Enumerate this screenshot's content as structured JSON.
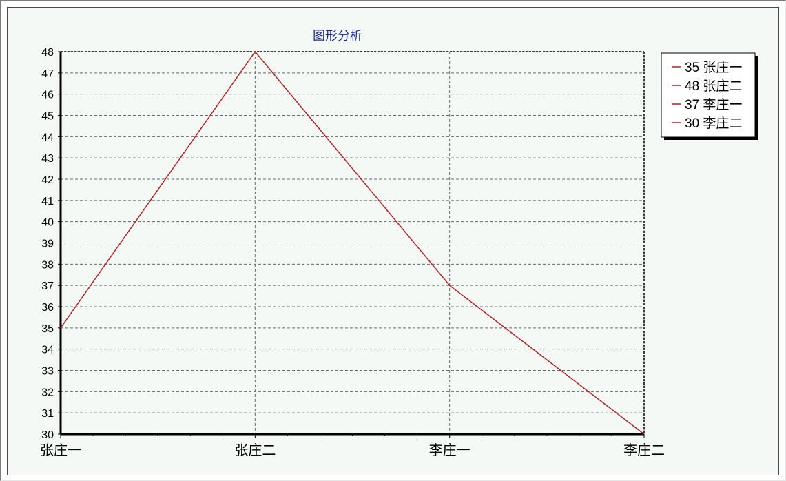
{
  "chart_data": {
    "type": "line",
    "title": "图形分析",
    "categories": [
      "张庄一",
      "张庄二",
      "李庄一",
      "李庄二"
    ],
    "series": [
      {
        "values": [
          35,
          48,
          37,
          30
        ]
      }
    ],
    "ylim": [
      30,
      48
    ],
    "y_ticks": [
      30,
      31,
      32,
      33,
      34,
      35,
      36,
      37,
      38,
      39,
      40,
      41,
      42,
      43,
      44,
      45,
      46,
      47,
      48
    ],
    "xlabel": "",
    "ylabel": "",
    "grid": true,
    "legend": {
      "position": "top-right",
      "entries": [
        "35 张庄一",
        "48 张庄二",
        "37 李庄一",
        "30 李庄二"
      ]
    },
    "colors": {
      "line": "#b32025",
      "title": "#1a2a8c",
      "grid": "#6a6a6a",
      "axis": "#000000",
      "plot_background": "#f5f9f6"
    }
  }
}
